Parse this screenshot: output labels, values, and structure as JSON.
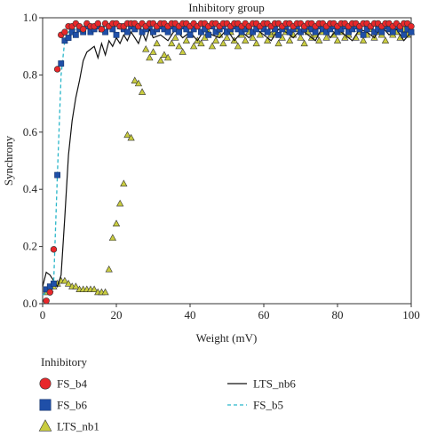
{
  "chart_data": {
    "type": "scatter",
    "title": "Inhibitory group",
    "xlabel": "Weight (mV)",
    "ylabel": "Synchrony",
    "xlim": [
      0,
      100
    ],
    "ylim": [
      0,
      1.0
    ],
    "x_ticks": [
      "0",
      "20",
      "40",
      "60",
      "80",
      "100"
    ],
    "y_ticks": [
      "0.0",
      "0.2",
      "0.4",
      "0.6",
      "0.8",
      "1.0"
    ],
    "legend_title": "Inhibitory",
    "legend_placement": "bottom",
    "series": [
      {
        "name": "FS_b4",
        "kind": "marker",
        "marker": "circle",
        "color": "#e8282b",
        "x": [
          1,
          2,
          3,
          4,
          5,
          6,
          7,
          8,
          9,
          10,
          11,
          12,
          13,
          14,
          15,
          16,
          17,
          18,
          19,
          20,
          21,
          22,
          23,
          24,
          25,
          26,
          27,
          28,
          29,
          30,
          31,
          32,
          33,
          34,
          35,
          36,
          37,
          38,
          39,
          40,
          41,
          42,
          43,
          44,
          45,
          46,
          47,
          48,
          49,
          50,
          51,
          52,
          53,
          54,
          55,
          56,
          57,
          58,
          59,
          60,
          61,
          62,
          63,
          64,
          65,
          66,
          67,
          68,
          69,
          70,
          71,
          72,
          73,
          74,
          75,
          76,
          77,
          78,
          79,
          80,
          81,
          82,
          83,
          84,
          85,
          86,
          87,
          88,
          89,
          90,
          91,
          92,
          93,
          94,
          95,
          96,
          97,
          98,
          99,
          100
        ],
        "y": [
          0.01,
          0.04,
          0.19,
          0.82,
          0.94,
          0.95,
          0.97,
          0.97,
          0.98,
          0.97,
          0.96,
          0.98,
          0.97,
          0.97,
          0.98,
          0.96,
          0.98,
          0.97,
          0.98,
          0.98,
          0.97,
          0.97,
          0.98,
          0.98,
          0.98,
          0.97,
          0.98,
          0.97,
          0.98,
          0.98,
          0.97,
          0.98,
          0.98,
          0.97,
          0.98,
          0.98,
          0.97,
          0.98,
          0.98,
          0.97,
          0.98,
          0.97,
          0.98,
          0.98,
          0.97,
          0.98,
          0.98,
          0.97,
          0.98,
          0.98,
          0.97,
          0.98,
          0.98,
          0.97,
          0.98,
          0.97,
          0.98,
          0.98,
          0.97,
          0.98,
          0.98,
          0.97,
          0.98,
          0.98,
          0.97,
          0.98,
          0.98,
          0.97,
          0.98,
          0.98,
          0.97,
          0.98,
          0.98,
          0.97,
          0.98,
          0.98,
          0.97,
          0.98,
          0.98,
          0.97,
          0.98,
          0.98,
          0.97,
          0.98,
          0.98,
          0.97,
          0.98,
          0.98,
          0.97,
          0.98,
          0.98,
          0.97,
          0.98,
          0.98,
          0.97,
          0.98,
          0.97,
          0.98,
          0.98,
          0.97
        ]
      },
      {
        "name": "FS_b6",
        "kind": "marker",
        "marker": "square",
        "color": "#1f4fa8",
        "x": [
          1,
          2,
          3,
          4,
          5,
          6,
          7,
          8,
          9,
          10,
          11,
          12,
          13,
          14,
          15,
          16,
          17,
          18,
          19,
          20,
          21,
          22,
          23,
          24,
          25,
          26,
          27,
          28,
          29,
          30,
          31,
          32,
          33,
          34,
          35,
          36,
          37,
          38,
          39,
          40,
          41,
          42,
          43,
          44,
          45,
          46,
          47,
          48,
          49,
          50,
          51,
          52,
          53,
          54,
          55,
          56,
          57,
          58,
          59,
          60,
          61,
          62,
          63,
          64,
          65,
          66,
          67,
          68,
          69,
          70,
          71,
          72,
          73,
          74,
          75,
          76,
          77,
          78,
          79,
          80,
          81,
          82,
          83,
          84,
          85,
          86,
          87,
          88,
          89,
          90,
          91,
          92,
          93,
          94,
          95,
          96,
          97,
          98,
          99,
          100
        ],
        "y": [
          0.05,
          0.06,
          0.07,
          0.45,
          0.84,
          0.92,
          0.93,
          0.95,
          0.94,
          0.96,
          0.95,
          0.97,
          0.95,
          0.96,
          0.97,
          0.96,
          0.95,
          0.97,
          0.96,
          0.94,
          0.97,
          0.96,
          0.95,
          0.97,
          0.96,
          0.97,
          0.95,
          0.96,
          0.97,
          0.95,
          0.96,
          0.97,
          0.96,
          0.95,
          0.97,
          0.96,
          0.95,
          0.97,
          0.96,
          0.94,
          0.96,
          0.97,
          0.95,
          0.96,
          0.94,
          0.97,
          0.95,
          0.96,
          0.97,
          0.95,
          0.96,
          0.97,
          0.96,
          0.95,
          0.96,
          0.97,
          0.95,
          0.96,
          0.97,
          0.96,
          0.95,
          0.97,
          0.96,
          0.94,
          0.96,
          0.97,
          0.95,
          0.96,
          0.97,
          0.95,
          0.96,
          0.97,
          0.96,
          0.95,
          0.97,
          0.96,
          0.95,
          0.96,
          0.97,
          0.95,
          0.96,
          0.97,
          0.95,
          0.96,
          0.97,
          0.96,
          0.94,
          0.96,
          0.97,
          0.95,
          0.96,
          0.95,
          0.97,
          0.96,
          0.95,
          0.97,
          0.96,
          0.94,
          0.96,
          0.95
        ]
      },
      {
        "name": "LTS_nb1",
        "kind": "marker",
        "marker": "triangle",
        "color": "#c9cc3f",
        "x": [
          1,
          2,
          3,
          4,
          5,
          6,
          7,
          8,
          9,
          10,
          11,
          12,
          13,
          14,
          15,
          16,
          17,
          18,
          19,
          20,
          21,
          22,
          23,
          24,
          25,
          26,
          27,
          28,
          29,
          30,
          31,
          32,
          33,
          34,
          35,
          36,
          37,
          38,
          39,
          40,
          41,
          42,
          43,
          44,
          45,
          46,
          47,
          48,
          49,
          50,
          51,
          52,
          53,
          54,
          55,
          56,
          57,
          58,
          59,
          60,
          61,
          62,
          63,
          64,
          65,
          66,
          67,
          68,
          69,
          70,
          71,
          72,
          73,
          74,
          75,
          76,
          77,
          78,
          79,
          80,
          81,
          82,
          83,
          84,
          85,
          86,
          87,
          88,
          89,
          90,
          91,
          92,
          93,
          94,
          95,
          96,
          97,
          98,
          99,
          100
        ],
        "y": [
          0.04,
          0.05,
          0.06,
          0.07,
          0.08,
          0.08,
          0.07,
          0.06,
          0.06,
          0.05,
          0.05,
          0.05,
          0.05,
          0.05,
          0.04,
          0.04,
          0.04,
          0.12,
          0.23,
          0.28,
          0.35,
          0.42,
          0.59,
          0.58,
          0.78,
          0.77,
          0.74,
          0.89,
          0.86,
          0.88,
          0.91,
          0.85,
          0.87,
          0.86,
          0.91,
          0.93,
          0.9,
          0.88,
          0.92,
          0.94,
          0.9,
          0.92,
          0.91,
          0.93,
          0.95,
          0.9,
          0.92,
          0.94,
          0.91,
          0.93,
          0.95,
          0.92,
          0.9,
          0.94,
          0.92,
          0.95,
          0.93,
          0.91,
          0.94,
          0.96,
          0.92,
          0.94,
          0.95,
          0.91,
          0.93,
          0.95,
          0.92,
          0.94,
          0.96,
          0.93,
          0.91,
          0.95,
          0.93,
          0.94,
          0.92,
          0.95,
          0.93,
          0.96,
          0.94,
          0.92,
          0.95,
          0.93,
          0.94,
          0.96,
          0.93,
          0.95,
          0.92,
          0.94,
          0.96,
          0.93,
          0.95,
          0.94,
          0.92,
          0.96,
          0.94,
          0.95,
          0.93,
          0.96,
          0.94,
          0.95
        ]
      },
      {
        "name": "LTS_nb6",
        "kind": "line",
        "style": "solid",
        "color": "#111111",
        "x": [
          0,
          1,
          2,
          3,
          4,
          5,
          6,
          7,
          8,
          9,
          10,
          11,
          12,
          13,
          14,
          15,
          16,
          17,
          18,
          19,
          20,
          21,
          22,
          23,
          24,
          25,
          26,
          27,
          28,
          29,
          30,
          32,
          34,
          36,
          38,
          40,
          42,
          44,
          46,
          48,
          50,
          52,
          54,
          56,
          58,
          60,
          62,
          64,
          66,
          68,
          70,
          72,
          74,
          76,
          78,
          80,
          82,
          84,
          86,
          88,
          90,
          92,
          94,
          96,
          98,
          100
        ],
        "y": [
          0.06,
          0.11,
          0.1,
          0.08,
          0.06,
          0.1,
          0.3,
          0.52,
          0.64,
          0.72,
          0.78,
          0.85,
          0.88,
          0.89,
          0.9,
          0.86,
          0.91,
          0.87,
          0.92,
          0.9,
          0.93,
          0.91,
          0.94,
          0.92,
          0.95,
          0.93,
          0.91,
          0.95,
          0.92,
          0.96,
          0.93,
          0.94,
          0.92,
          0.96,
          0.93,
          0.95,
          0.92,
          0.96,
          0.94,
          0.93,
          0.96,
          0.92,
          0.95,
          0.93,
          0.96,
          0.94,
          0.92,
          0.96,
          0.95,
          0.93,
          0.96,
          0.94,
          0.92,
          0.97,
          0.93,
          0.96,
          0.94,
          0.92,
          0.96,
          0.95,
          0.93,
          0.97,
          0.94,
          0.96,
          0.92,
          0.95
        ]
      },
      {
        "name": "FS_b5",
        "kind": "line",
        "style": "dashed",
        "color": "#29b6c9",
        "x": [
          0,
          1,
          2,
          3,
          4,
          5,
          6,
          7,
          8,
          9,
          10,
          12,
          14,
          16,
          18,
          20,
          25,
          30,
          35,
          40,
          45,
          50,
          55,
          60,
          65,
          70,
          75,
          80,
          85,
          90,
          95,
          100
        ],
        "y": [
          0.03,
          0.04,
          0.05,
          0.08,
          0.45,
          0.8,
          0.92,
          0.95,
          0.96,
          0.96,
          0.97,
          0.97,
          0.97,
          0.97,
          0.97,
          0.97,
          0.97,
          0.97,
          0.97,
          0.97,
          0.97,
          0.97,
          0.97,
          0.97,
          0.97,
          0.97,
          0.97,
          0.97,
          0.97,
          0.97,
          0.97,
          0.97
        ]
      }
    ]
  }
}
